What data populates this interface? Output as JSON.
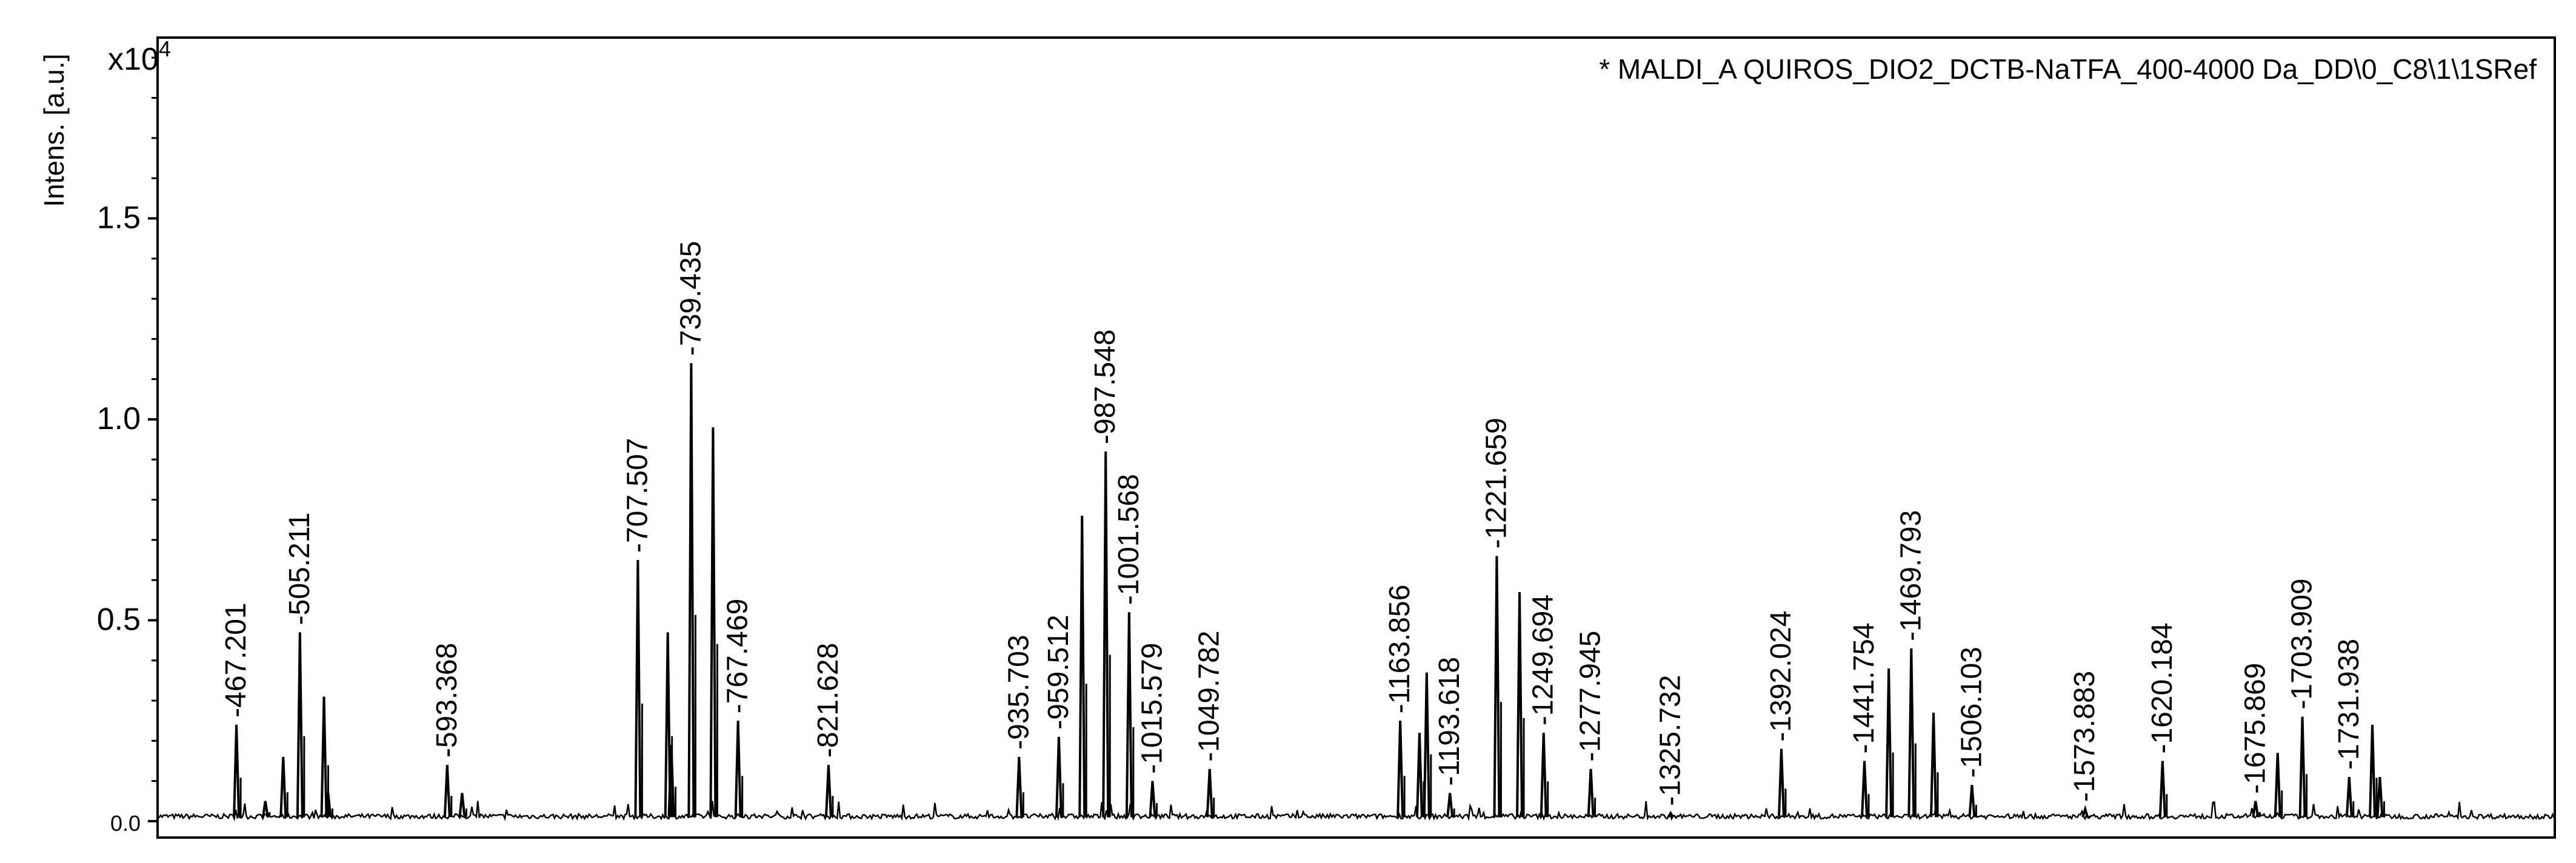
{
  "chart_data": {
    "type": "line",
    "title": "* MALDI_A QUIROS_DIO2_DCTB-NaTFA_400-4000 Da_DD\\0_C8\\1\\1SRef",
    "ylabel": "Intens. [a.u.]",
    "y_multiplier": "x10",
    "y_multiplier_exp": "4",
    "xlabel": "",
    "xlim": [
      420,
      1855
    ],
    "ylim": [
      0,
      1.95
    ],
    "yticks": [
      {
        "value": 0.0,
        "label": "0.0"
      },
      {
        "value": 0.5,
        "label": "0.5"
      },
      {
        "value": 1.0,
        "label": "1.0"
      },
      {
        "value": 1.5,
        "label": "1.5"
      }
    ],
    "grid": false,
    "peaks": [
      {
        "mz": 467.201,
        "intensity": 0.24,
        "label": "467.201"
      },
      {
        "mz": 505.211,
        "intensity": 0.47,
        "label": "505.211"
      },
      {
        "mz": 593.368,
        "intensity": 0.14,
        "label": "593.368"
      },
      {
        "mz": 707.507,
        "intensity": 0.65,
        "label": "707.507"
      },
      {
        "mz": 739.435,
        "intensity": 1.14,
        "label": "739.435"
      },
      {
        "mz": 767.469,
        "intensity": 0.25,
        "label": "767.469"
      },
      {
        "mz": 821.628,
        "intensity": 0.14,
        "label": "821.628"
      },
      {
        "mz": 935.703,
        "intensity": 0.16,
        "label": "935.703"
      },
      {
        "mz": 959.512,
        "intensity": 0.21,
        "label": "959.512"
      },
      {
        "mz": 987.548,
        "intensity": 0.92,
        "label": "987.548"
      },
      {
        "mz": 1001.568,
        "intensity": 0.52,
        "label": "1001.568"
      },
      {
        "mz": 1015.579,
        "intensity": 0.1,
        "label": "1015.579"
      },
      {
        "mz": 1049.782,
        "intensity": 0.13,
        "label": "1049.782"
      },
      {
        "mz": 1163.856,
        "intensity": 0.25,
        "label": "1163.856"
      },
      {
        "mz": 1193.618,
        "intensity": 0.07,
        "label": "1193.618"
      },
      {
        "mz": 1221.659,
        "intensity": 0.66,
        "label": "1221.659"
      },
      {
        "mz": 1249.694,
        "intensity": 0.22,
        "label": "1249.694"
      },
      {
        "mz": 1277.945,
        "intensity": 0.13,
        "label": "1277.945"
      },
      {
        "mz": 1325.732,
        "intensity": 0.02,
        "label": "1325.732"
      },
      {
        "mz": 1392.024,
        "intensity": 0.18,
        "label": "1392.024"
      },
      {
        "mz": 1441.754,
        "intensity": 0.15,
        "label": "1441.754"
      },
      {
        "mz": 1469.793,
        "intensity": 0.43,
        "label": "1469.793"
      },
      {
        "mz": 1506.103,
        "intensity": 0.09,
        "label": "1506.103"
      },
      {
        "mz": 1573.883,
        "intensity": 0.03,
        "label": "1573.883"
      },
      {
        "mz": 1620.184,
        "intensity": 0.15,
        "label": "1620.184"
      },
      {
        "mz": 1675.869,
        "intensity": 0.05,
        "label": "1675.869"
      },
      {
        "mz": 1703.909,
        "intensity": 0.26,
        "label": "1703.909"
      },
      {
        "mz": 1731.938,
        "intensity": 0.11,
        "label": "1731.938"
      }
    ],
    "other_peaks": [
      {
        "mz": 484.5,
        "intensity": 0.05
      },
      {
        "mz": 495.2,
        "intensity": 0.16
      },
      {
        "mz": 519.6,
        "intensity": 0.31
      },
      {
        "mz": 522.1,
        "intensity": 0.07
      },
      {
        "mz": 602.3,
        "intensity": 0.07
      },
      {
        "mz": 725.4,
        "intensity": 0.47
      },
      {
        "mz": 727.5,
        "intensity": 0.19
      },
      {
        "mz": 752.5,
        "intensity": 0.98
      },
      {
        "mz": 973.4,
        "intensity": 0.76
      },
      {
        "mz": 1175.4,
        "intensity": 0.22
      },
      {
        "mz": 1179.7,
        "intensity": 0.37
      },
      {
        "mz": 1235.3,
        "intensity": 0.57
      },
      {
        "mz": 1483.1,
        "intensity": 0.27
      },
      {
        "mz": 1456.3,
        "intensity": 0.38
      },
      {
        "mz": 1689.1,
        "intensity": 0.17
      },
      {
        "mz": 1745.8,
        "intensity": 0.24
      },
      {
        "mz": 1750.3,
        "intensity": 0.11
      }
    ]
  }
}
